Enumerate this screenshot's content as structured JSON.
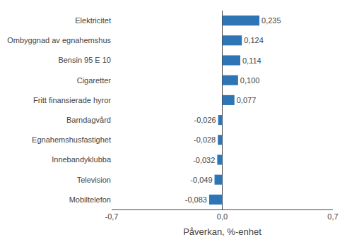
{
  "chart_data": {
    "type": "bar",
    "orientation": "horizontal",
    "categories": [
      "Mobiltelefon",
      "Television",
      "Innebandyklubba",
      "Egnahemshusfastighet",
      "Barndagvård",
      "Fritt finansierade hyror",
      "Cigaretter",
      "Bensin 95 E 10",
      "Ombyggnad av egnahemshus",
      "Elektricitet"
    ],
    "values": [
      -0.083,
      -0.049,
      -0.032,
      -0.028,
      -0.026,
      0.077,
      0.1,
      0.114,
      0.124,
      0.235
    ],
    "value_labels": [
      "-0,083",
      "-0,049",
      "-0,032",
      "-0,028",
      "-0,026",
      "0,077",
      "0,100",
      "0,114",
      "0,124",
      "0,235"
    ],
    "data_labels": true,
    "color": "#2E75B6",
    "xlabel": "Påverkan, %-enhet",
    "xlim": [
      -0.7,
      0.7
    ],
    "xticks": [
      {
        "value": -0.7,
        "label": "-0,7"
      },
      {
        "value": 0.0,
        "label": "0,0"
      },
      {
        "value": 0.7,
        "label": "0,7"
      }
    ],
    "grid": true
  }
}
